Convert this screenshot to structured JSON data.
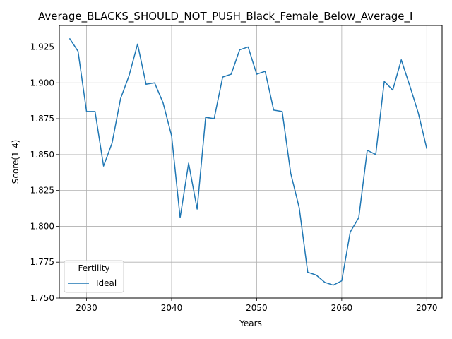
{
  "chart_data": {
    "type": "line",
    "title": "Average_BLACKS_SHOULD_NOT_PUSH_Black_Female_Below_Average_I",
    "xlabel": "Years",
    "ylabel": "Score(1-4)",
    "xlim": [
      2026.8,
      2071.8
    ],
    "ylim": [
      1.75,
      1.94
    ],
    "xticks": [
      2030,
      2040,
      2050,
      2060,
      2070
    ],
    "xtick_labels": [
      "2030",
      "2040",
      "2050",
      "2060",
      "2070"
    ],
    "yticks": [
      1.75,
      1.775,
      1.8,
      1.825,
      1.85,
      1.875,
      1.9,
      1.925
    ],
    "ytick_labels": [
      "1.750",
      "1.775",
      "1.800",
      "1.825",
      "1.850",
      "1.875",
      "1.900",
      "1.925"
    ],
    "grid": true,
    "legend": {
      "title": "Fertility",
      "position": "lower-left"
    },
    "series": [
      {
        "name": "Ideal",
        "color": "#1f77b4",
        "x": [
          2028,
          2029,
          2030,
          2031,
          2032,
          2033,
          2034,
          2035,
          2036,
          2037,
          2038,
          2039,
          2040,
          2041,
          2042,
          2043,
          2044,
          2045,
          2046,
          2047,
          2048,
          2049,
          2050,
          2051,
          2052,
          2053,
          2054,
          2055,
          2056,
          2057,
          2058,
          2059,
          2060,
          2061,
          2062,
          2063,
          2064,
          2065,
          2066,
          2067,
          2068,
          2069,
          2070
        ],
        "values": [
          1.931,
          1.922,
          1.88,
          1.88,
          1.842,
          1.858,
          1.889,
          1.905,
          1.927,
          1.899,
          1.9,
          1.886,
          1.863,
          1.806,
          1.844,
          1.812,
          1.876,
          1.875,
          1.904,
          1.906,
          1.923,
          1.925,
          1.906,
          1.908,
          1.881,
          1.88,
          1.837,
          1.813,
          1.768,
          1.766,
          1.761,
          1.759,
          1.762,
          1.796,
          1.806,
          1.853,
          1.85,
          1.901,
          1.895,
          1.916,
          1.898,
          1.879,
          1.854
        ]
      }
    ]
  }
}
